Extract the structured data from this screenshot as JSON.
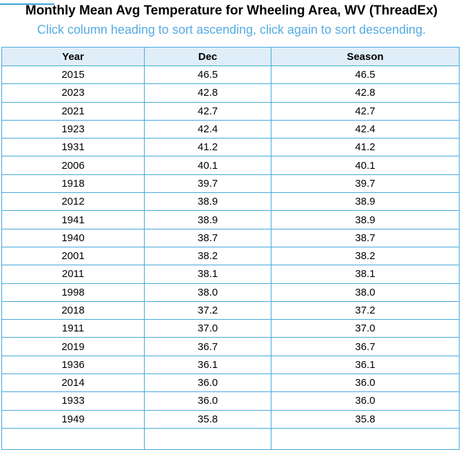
{
  "page": {
    "title": "Monthly Mean Avg Temperature for Wheeling Area, WV (ThreadEx)",
    "subtitle": "Click column heading to sort ascending, click again to sort descending."
  },
  "chart_data": {
    "type": "table",
    "title": "Monthly Mean Avg Temperature for Wheeling Area, WV (ThreadEx)",
    "columns": [
      "Year",
      "Dec",
      "Season"
    ],
    "rows": [
      [
        "2015",
        "46.5",
        "46.5"
      ],
      [
        "2023",
        "42.8",
        "42.8"
      ],
      [
        "2021",
        "42.7",
        "42.7"
      ],
      [
        "1923",
        "42.4",
        "42.4"
      ],
      [
        "1931",
        "41.2",
        "41.2"
      ],
      [
        "2006",
        "40.1",
        "40.1"
      ],
      [
        "1918",
        "39.7",
        "39.7"
      ],
      [
        "2012",
        "38.9",
        "38.9"
      ],
      [
        "1941",
        "38.9",
        "38.9"
      ],
      [
        "1940",
        "38.7",
        "38.7"
      ],
      [
        "2001",
        "38.2",
        "38.2"
      ],
      [
        "2011",
        "38.1",
        "38.1"
      ],
      [
        "1998",
        "38.0",
        "38.0"
      ],
      [
        "2018",
        "37.2",
        "37.2"
      ],
      [
        "1911",
        "37.0",
        "37.0"
      ],
      [
        "2019",
        "36.7",
        "36.7"
      ],
      [
        "1936",
        "36.1",
        "36.1"
      ],
      [
        "2014",
        "36.0",
        "36.0"
      ],
      [
        "1933",
        "36.0",
        "36.0"
      ],
      [
        "1949",
        "35.8",
        "35.8"
      ]
    ]
  },
  "colors": {
    "table_border": "#45a8db",
    "header_background": "#e0eef9",
    "subtitle_text": "#55abe2",
    "top_bar": "#3fa2d9",
    "body_text": "#000000"
  }
}
